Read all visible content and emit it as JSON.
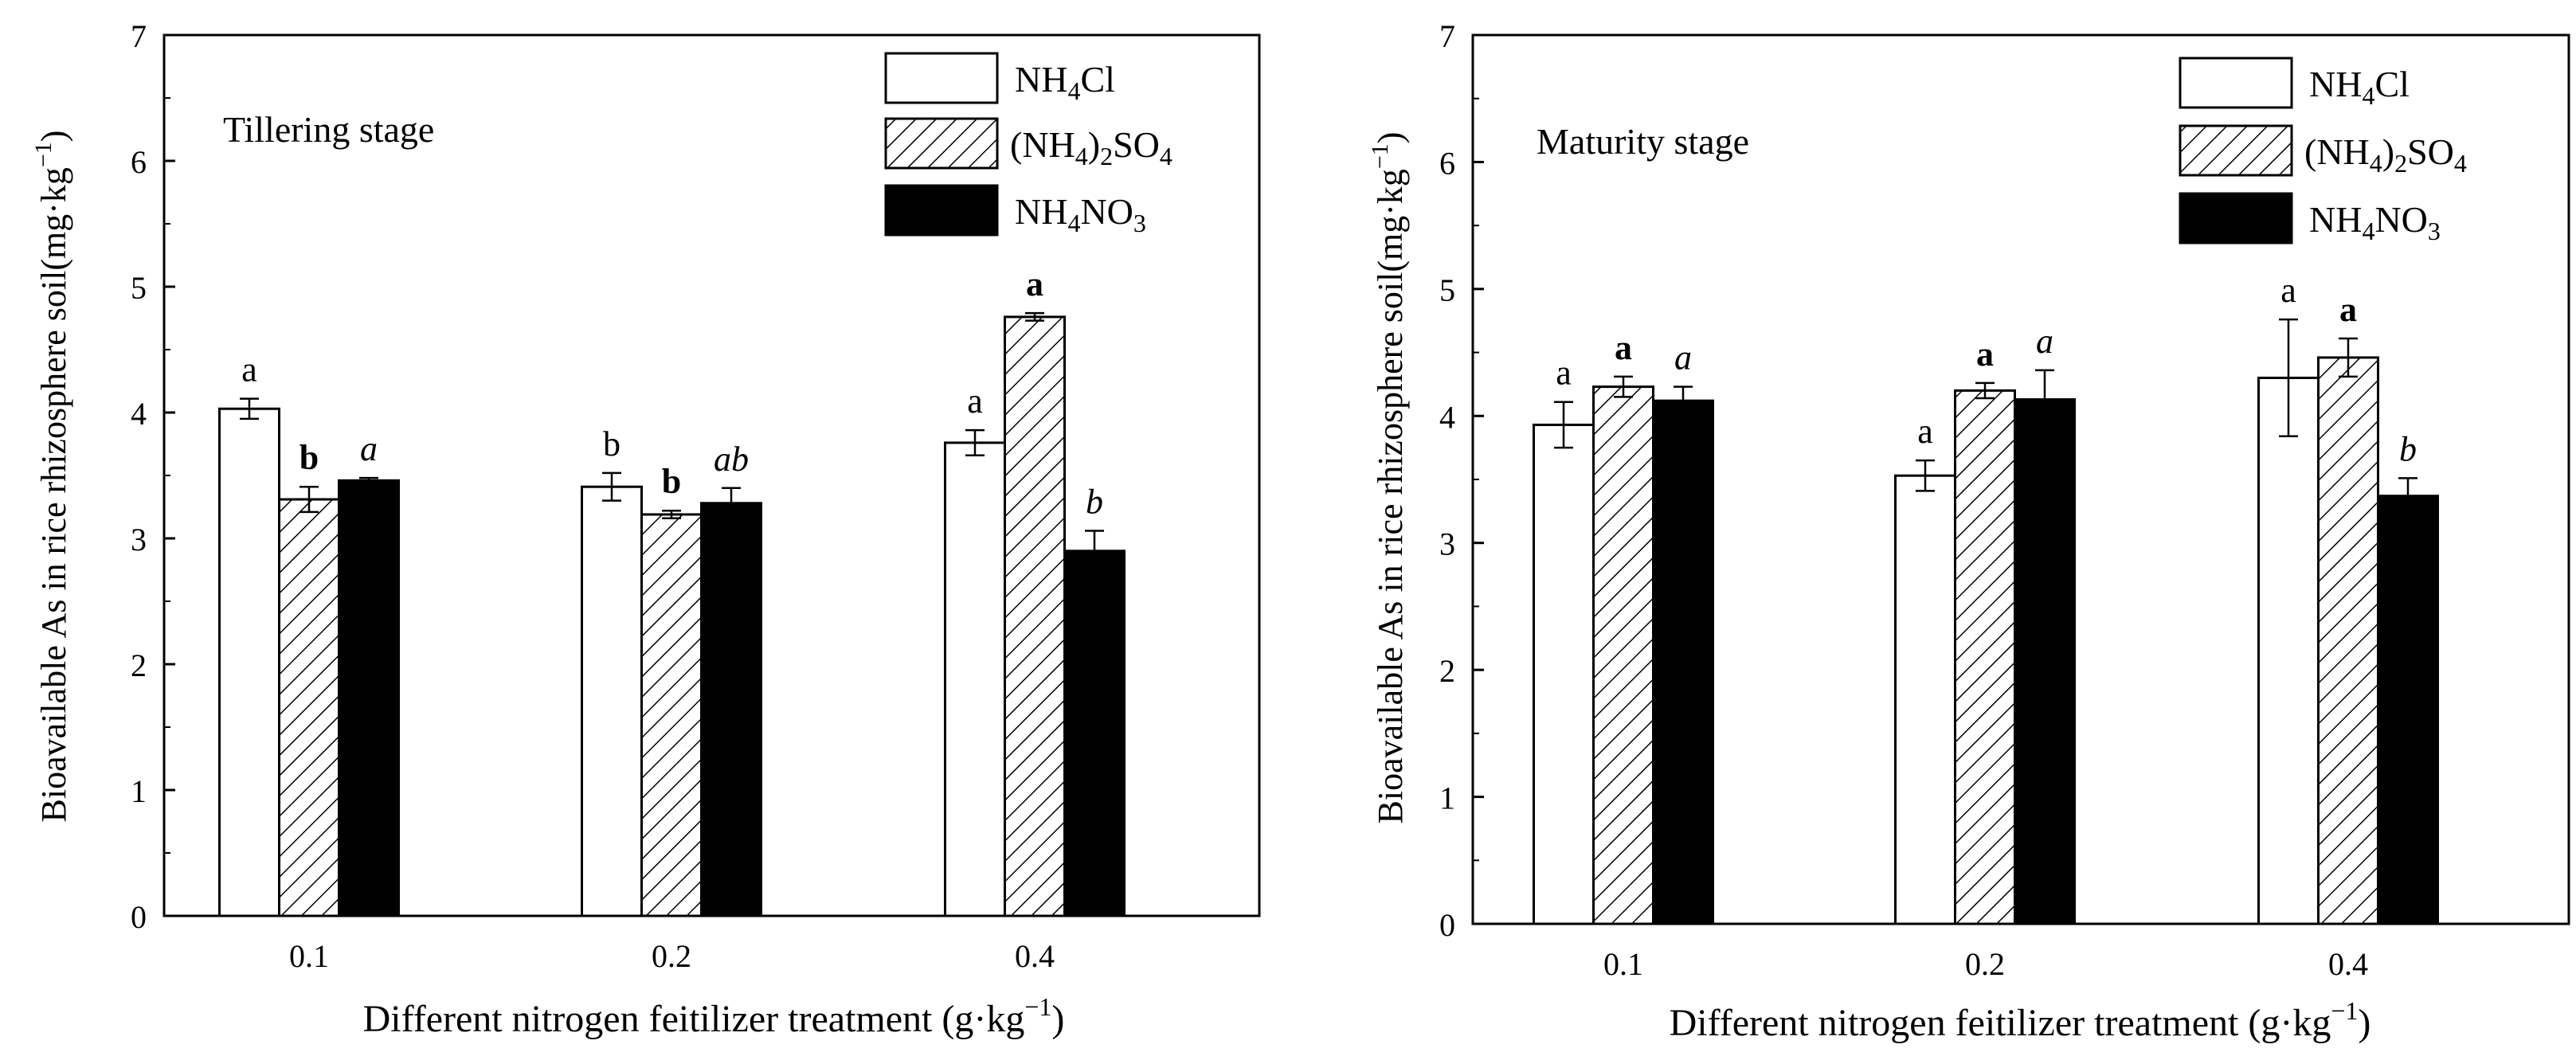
{
  "chart_data": [
    {
      "type": "bar",
      "panel_label": "Tillering stage",
      "ylabel": "Bioavailable As in rice rhizosphere soil(mg·kg",
      "ylabel_sup": "−1",
      "ylabel_close": ")",
      "xlabel": "Different nitrogen feitilizer treatment (g·kg",
      "xlabel_sup": "−1",
      "xlabel_close": ")",
      "ylim": [
        0,
        7
      ],
      "yticks": [
        "0",
        "1",
        "2",
        "3",
        "4",
        "5",
        "6",
        "7"
      ],
      "categories": [
        "0.1",
        "0.2",
        "0.4"
      ],
      "legend_position": "top-right",
      "series": [
        {
          "name": "NH4Cl",
          "fill": "white",
          "values": [
            4.03,
            3.41,
            3.76
          ],
          "errors": [
            0.08,
            0.11,
            0.1
          ],
          "letters": [
            "a",
            "b",
            "a"
          ],
          "letter_style": "normal"
        },
        {
          "name": "(NH4)2SO4",
          "fill": "hatch",
          "values": [
            3.31,
            3.19,
            4.76
          ],
          "errors": [
            0.1,
            0.03,
            0.03
          ],
          "letters": [
            "b",
            "b",
            "a"
          ],
          "letter_style": "bold"
        },
        {
          "name": "NH4NO3",
          "fill": "black",
          "values": [
            3.46,
            3.28,
            2.9
          ],
          "errors": [
            0.02,
            0.12,
            0.16
          ],
          "letters": [
            "a",
            "ab",
            "b"
          ],
          "letter_style": "italic"
        }
      ]
    },
    {
      "type": "bar",
      "panel_label": "Maturity stage",
      "ylabel": "Bioavailable As in rice rhizosphere soil(mg·kg",
      "ylabel_sup": "−1",
      "ylabel_close": ")",
      "xlabel": "Different nitrogen feitilizer treatment (g·kg",
      "xlabel_sup": "−1",
      "xlabel_close": ")",
      "ylim": [
        0,
        7
      ],
      "yticks": [
        "0",
        "1",
        "2",
        "3",
        "4",
        "5",
        "6",
        "7"
      ],
      "categories": [
        "0.1",
        "0.2",
        "0.4"
      ],
      "legend_position": "top-right",
      "series": [
        {
          "name": "NH4Cl",
          "fill": "white",
          "values": [
            3.93,
            3.53,
            4.3
          ],
          "errors": [
            0.18,
            0.12,
            0.46
          ],
          "letters": [
            "a",
            "a",
            "a"
          ],
          "letter_style": "normal"
        },
        {
          "name": "(NH4)2SO4",
          "fill": "hatch",
          "values": [
            4.23,
            4.2,
            4.46
          ],
          "errors": [
            0.08,
            0.06,
            0.15
          ],
          "letters": [
            "a",
            "a",
            "a"
          ],
          "letter_style": "bold"
        },
        {
          "name": "NH4NO3",
          "fill": "black",
          "values": [
            4.12,
            4.13,
            3.37
          ],
          "errors": [
            0.11,
            0.23,
            0.14
          ],
          "letters": [
            "a",
            "a",
            "b"
          ],
          "letter_style": "italic"
        }
      ]
    }
  ]
}
